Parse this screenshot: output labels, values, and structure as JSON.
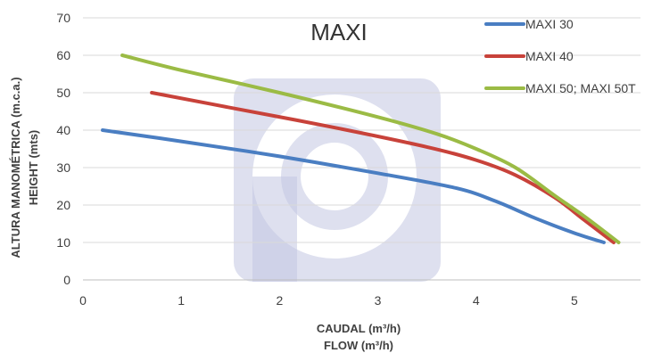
{
  "chart_data": {
    "type": "line",
    "title": "MAXI",
    "xlabel": [
      "CAUDAL (m³/h)",
      "FLOW (m³/h)"
    ],
    "ylabel": [
      "ALTURA MANOMÉTRICA (m.c.a.)",
      "HEIGHT (mts)"
    ],
    "xlim": [
      0,
      5.4
    ],
    "ylim": [
      0,
      70
    ],
    "xticks": [
      0,
      1,
      2,
      3,
      4,
      5
    ],
    "yticks": [
      0,
      10,
      20,
      30,
      40,
      50,
      60,
      70
    ],
    "grid": "horizontal",
    "legend": "top-right",
    "series": [
      {
        "name": "MAXI 30",
        "color": "#4a7ec2",
        "x": [
          0.2,
          1.0,
          2.0,
          3.0,
          3.8,
          4.2,
          4.6,
          5.0,
          5.3
        ],
        "y": [
          40,
          37,
          33,
          28.5,
          24.5,
          21,
          16.5,
          12.5,
          10
        ]
      },
      {
        "name": "MAXI 40",
        "color": "#c8423a",
        "x": [
          0.7,
          1.5,
          2.5,
          3.5,
          4.0,
          4.4,
          4.8,
          5.1,
          5.4
        ],
        "y": [
          50,
          46,
          41,
          35.5,
          32,
          28,
          22,
          16,
          10
        ]
      },
      {
        "name": "MAXI 50; MAXI 50T",
        "color": "#9bbb45",
        "x": [
          0.4,
          1.0,
          2.0,
          3.0,
          3.6,
          4.0,
          4.4,
          4.8,
          5.1,
          5.45
        ],
        "y": [
          60,
          56,
          50,
          43.5,
          39,
          35,
          30,
          22.5,
          17,
          10
        ]
      }
    ]
  },
  "watermark": {
    "name": "brand-logo-watermark",
    "color": "#c2c6e2"
  }
}
